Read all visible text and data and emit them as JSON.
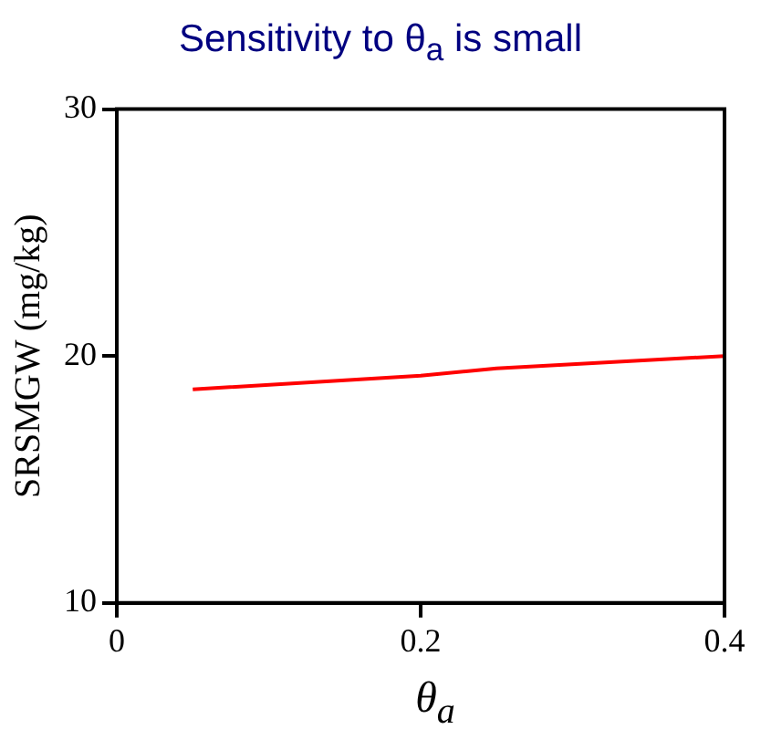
{
  "chart_data": {
    "type": "line",
    "title": "Sensitivity to θ$_{a}$ is small",
    "xlabel": "θ$_{a}$",
    "ylabel": "SRSMGW (mg/kg)",
    "x": [
      0.05,
      0.2,
      0.25,
      0.4
    ],
    "series": [
      {
        "color": "#ff0000",
        "values": [
          18.65,
          19.2,
          19.5,
          20.0
        ]
      }
    ],
    "xlim": [
      0,
      0.4
    ],
    "xticks": [
      0,
      0.2,
      0.4
    ],
    "ylim": [
      10,
      30
    ],
    "yticks": [
      10,
      20,
      30
    ],
    "grid": false,
    "legend": false,
    "marker": "none",
    "line_style": "solid"
  }
}
